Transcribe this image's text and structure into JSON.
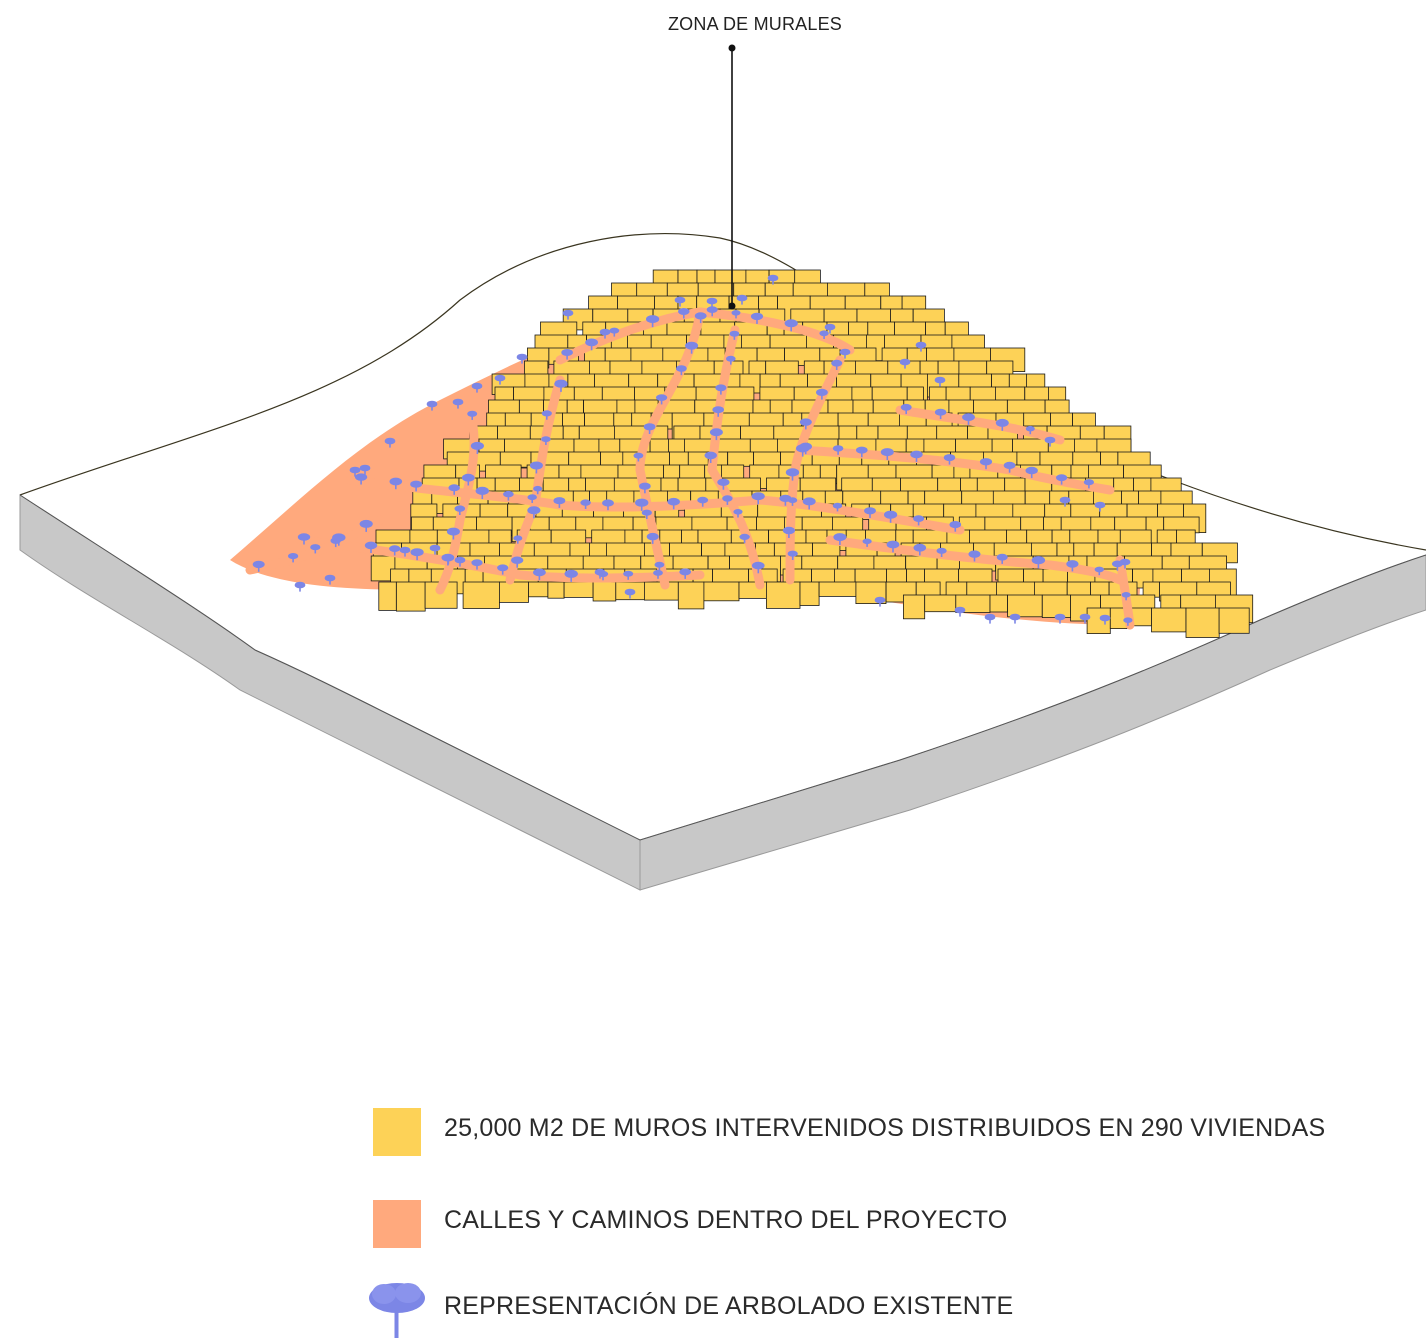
{
  "diagram": {
    "callout": {
      "label": "ZONA DE MURALES"
    },
    "colors": {
      "houses": "#FDD257",
      "streets": "#FFA97D",
      "trees": "#7C86E6",
      "terrain_side": "#C8C8C8",
      "outline": "#1a1a1a"
    }
  },
  "legend": {
    "items": [
      {
        "label": "25,000 M2 DE MUROS INTERVENIDOS  DISTRIBUIDOS EN 290 VIVIENDAS",
        "color": "#FDD257",
        "icon": "yellow-square"
      },
      {
        "label": "CALLES Y CAMINOS DENTRO DEL PROYECTO",
        "color": "#FFA97D",
        "icon": "orange-square"
      },
      {
        "label": "REPRESENTACIÓN DE ARBOLADO EXISTENTE",
        "color": "#7C86E6",
        "icon": "tree-icon"
      }
    ]
  }
}
